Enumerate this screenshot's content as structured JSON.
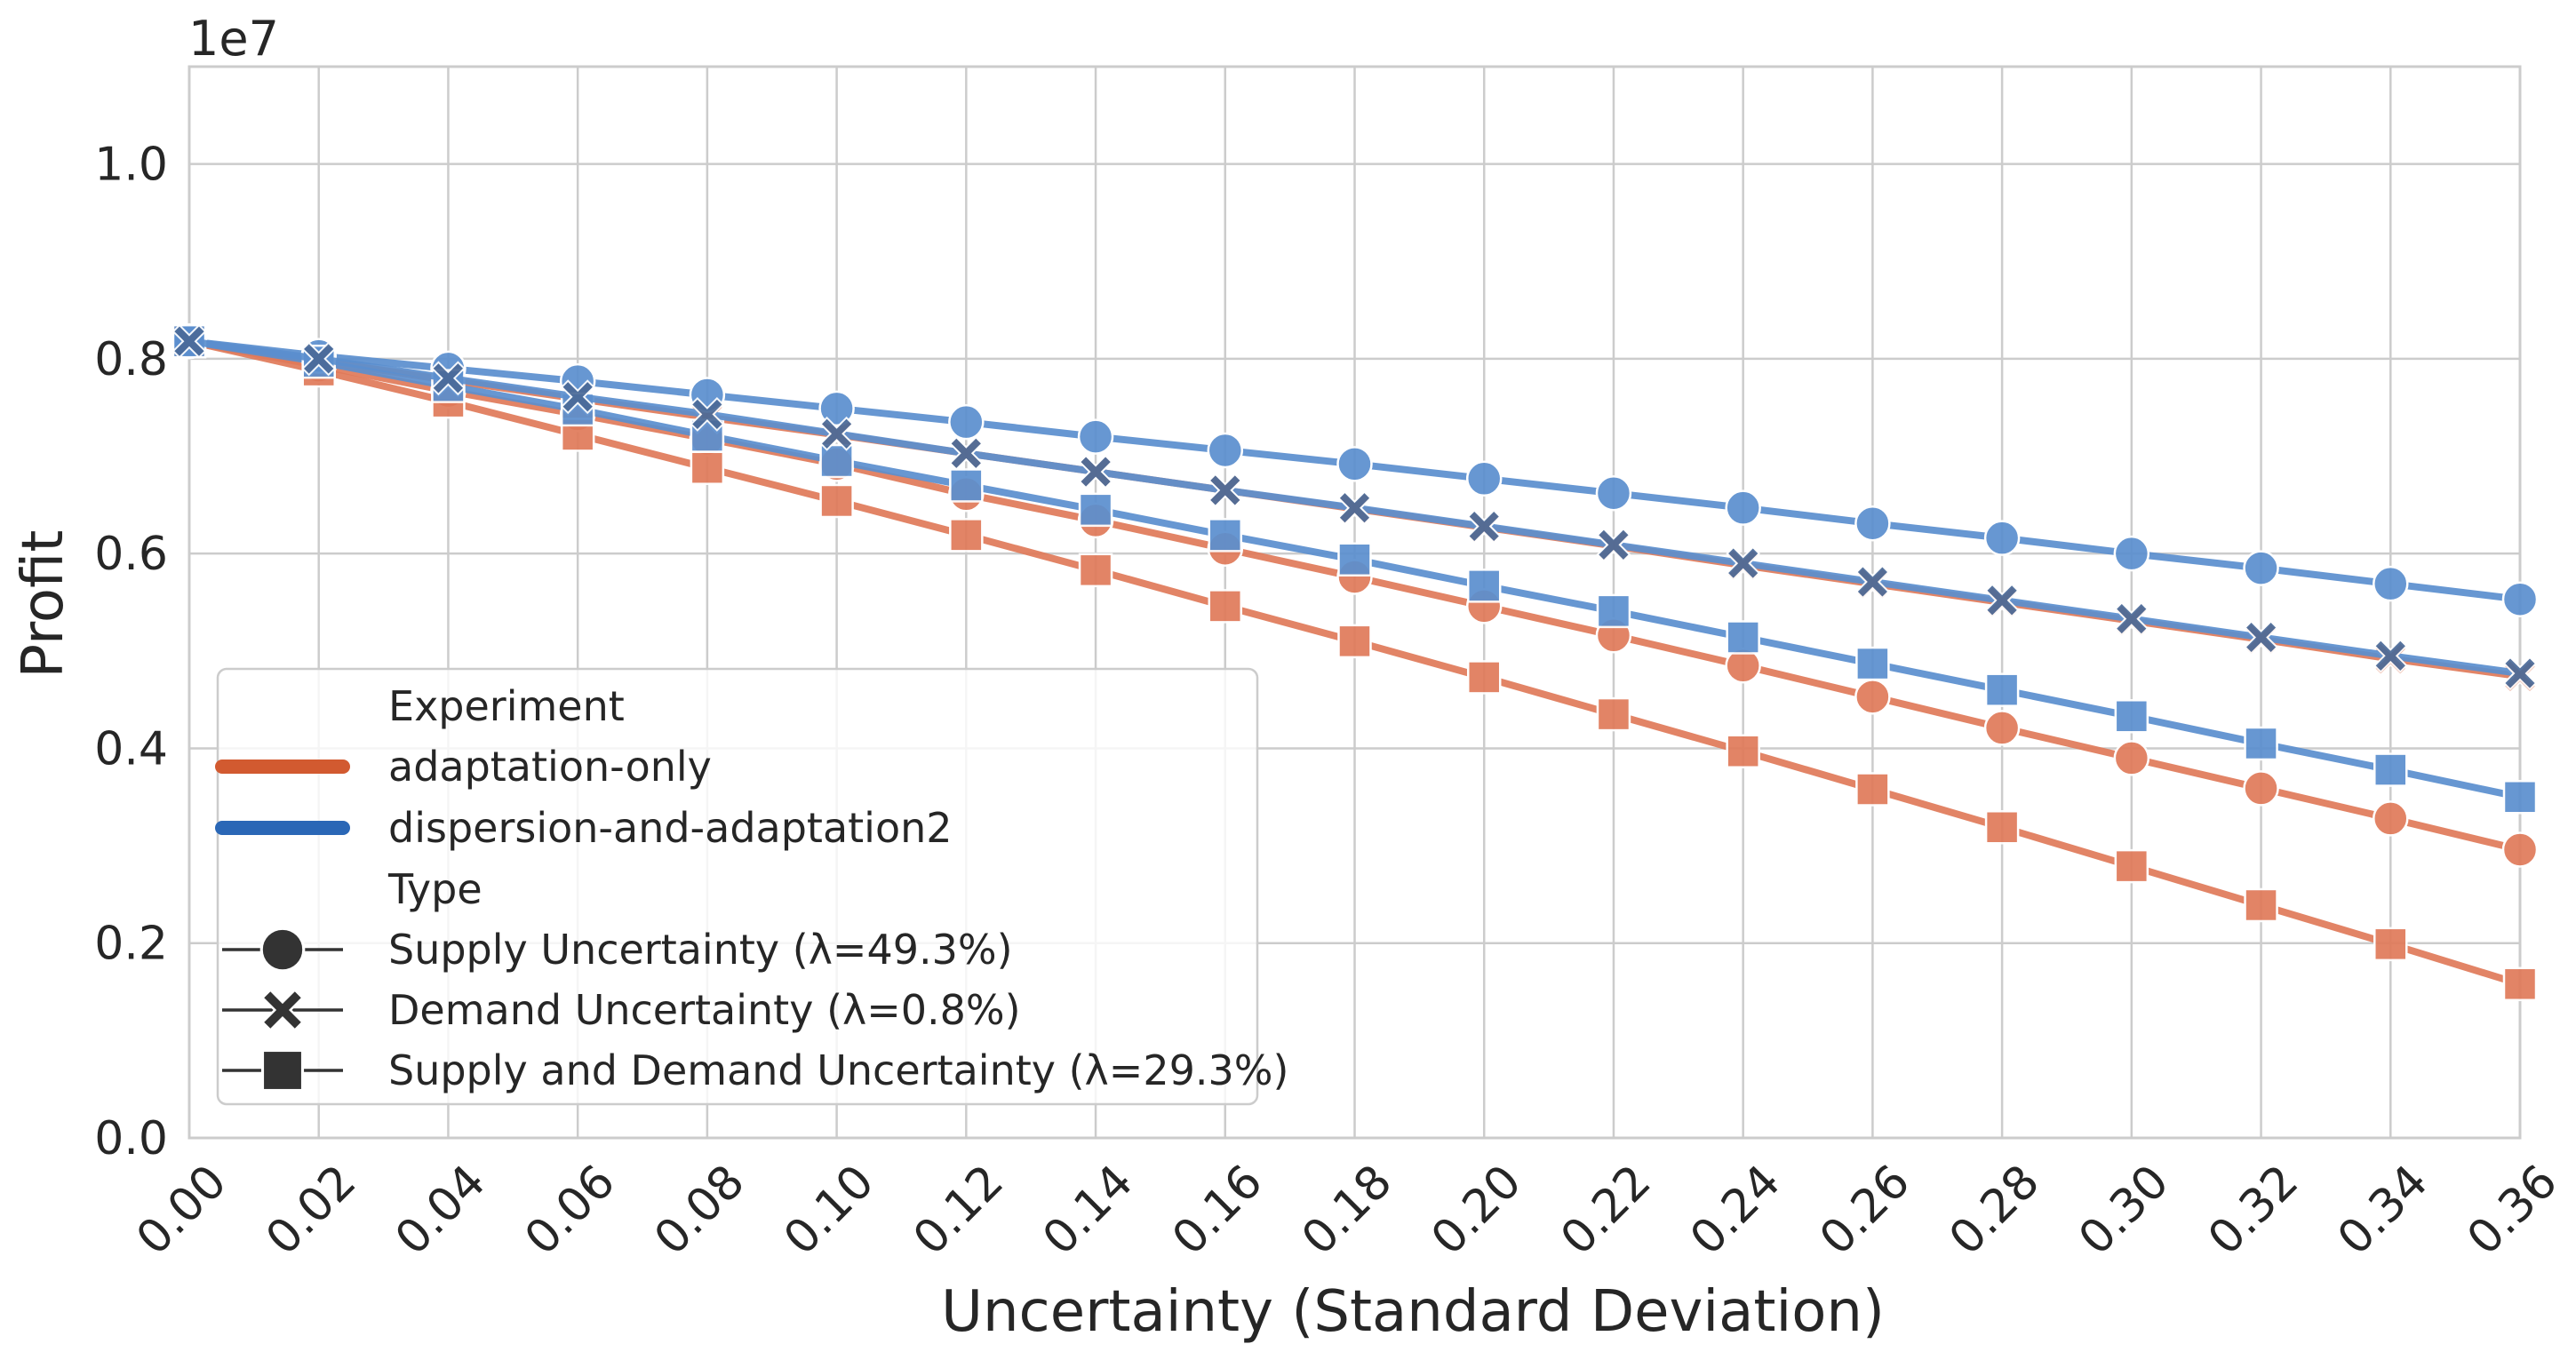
{
  "chart_data": {
    "type": "line",
    "title": "",
    "xlabel": "Uncertainty (Standard Deviation)",
    "ylabel": "Profit",
    "y_offset_label": "1e7",
    "xlim": [
      0.0,
      0.36
    ],
    "ylim": [
      0.0,
      1.1
    ],
    "x_ticks": [
      "0.00",
      "0.02",
      "0.04",
      "0.06",
      "0.08",
      "0.10",
      "0.12",
      "0.14",
      "0.16",
      "0.18",
      "0.20",
      "0.22",
      "0.24",
      "0.26",
      "0.28",
      "0.30",
      "0.32",
      "0.34",
      "0.36"
    ],
    "y_ticks": [
      "0.0",
      "0.2",
      "0.4",
      "0.6",
      "0.8",
      "1.0"
    ],
    "x": [
      0.0,
      0.02,
      0.04,
      0.06,
      0.08,
      0.1,
      0.12,
      0.14,
      0.16,
      0.18,
      0.2,
      0.22,
      0.24,
      0.26,
      0.28,
      0.3,
      0.32,
      0.34,
      0.36
    ],
    "grid": true,
    "colors": {
      "adaptation-only": "#e07a5a",
      "dispersion-and-adaptation2": "#5b8fcf",
      "adaptation-only-legend": "#d25a30",
      "dispersion-legend": "#2a67b6",
      "overlap": "#4a6a98"
    },
    "series": [
      {
        "name": "dispersion-and-adaptation2 / Supply Uncertainty",
        "experiment": "dispersion-and-adaptation2",
        "marker": "circle",
        "values": [
          0.818,
          0.803,
          0.79,
          0.777,
          0.763,
          0.749,
          0.735,
          0.72,
          0.706,
          0.692,
          0.677,
          0.662,
          0.647,
          0.631,
          0.616,
          0.6,
          0.585,
          0.569,
          0.553
        ]
      },
      {
        "name": "dispersion-and-adaptation2 / Demand Uncertainty",
        "experiment": "dispersion-and-adaptation2",
        "marker": "x",
        "values": [
          0.818,
          0.8,
          0.78,
          0.761,
          0.743,
          0.723,
          0.703,
          0.684,
          0.665,
          0.647,
          0.628,
          0.609,
          0.59,
          0.571,
          0.552,
          0.533,
          0.514,
          0.495,
          0.477
        ]
      },
      {
        "name": "dispersion-and-adaptation2 / Supply and Demand Uncertainty",
        "experiment": "dispersion-and-adaptation2",
        "marker": "square",
        "values": [
          0.818,
          0.797,
          0.772,
          0.748,
          0.721,
          0.695,
          0.67,
          0.645,
          0.619,
          0.594,
          0.567,
          0.541,
          0.514,
          0.487,
          0.46,
          0.433,
          0.405,
          0.378,
          0.35
        ]
      },
      {
        "name": "adaptation-only / Supply Uncertainty",
        "experiment": "adaptation-only",
        "marker": "circle",
        "values": [
          0.818,
          0.793,
          0.767,
          0.743,
          0.718,
          0.692,
          0.661,
          0.634,
          0.605,
          0.576,
          0.546,
          0.516,
          0.485,
          0.453,
          0.421,
          0.39,
          0.359,
          0.328,
          0.296
        ]
      },
      {
        "name": "adaptation-only / Demand Uncertainty",
        "experiment": "adaptation-only",
        "marker": "x",
        "values": [
          0.818,
          0.798,
          0.778,
          0.759,
          0.74,
          0.722,
          0.703,
          0.684,
          0.665,
          0.646,
          0.627,
          0.608,
          0.588,
          0.569,
          0.55,
          0.531,
          0.512,
          0.492,
          0.474
        ]
      },
      {
        "name": "adaptation-only / Supply and Demand Uncertainty",
        "experiment": "adaptation-only",
        "marker": "square",
        "values": [
          0.818,
          0.788,
          0.756,
          0.722,
          0.688,
          0.654,
          0.619,
          0.583,
          0.546,
          0.51,
          0.473,
          0.435,
          0.397,
          0.358,
          0.319,
          0.279,
          0.239,
          0.199,
          0.158
        ]
      }
    ],
    "legend": {
      "position": "lower-left",
      "experiment_title": "Experiment",
      "experiments": [
        "adaptation-only",
        "dispersion-and-adaptation2"
      ],
      "type_title": "Type",
      "types": [
        "Supply Uncertainty (λ=49.3%)",
        "Demand Uncertainty (λ=0.8%)",
        "Supply and Demand Uncertainty (λ=29.3%)"
      ]
    }
  }
}
